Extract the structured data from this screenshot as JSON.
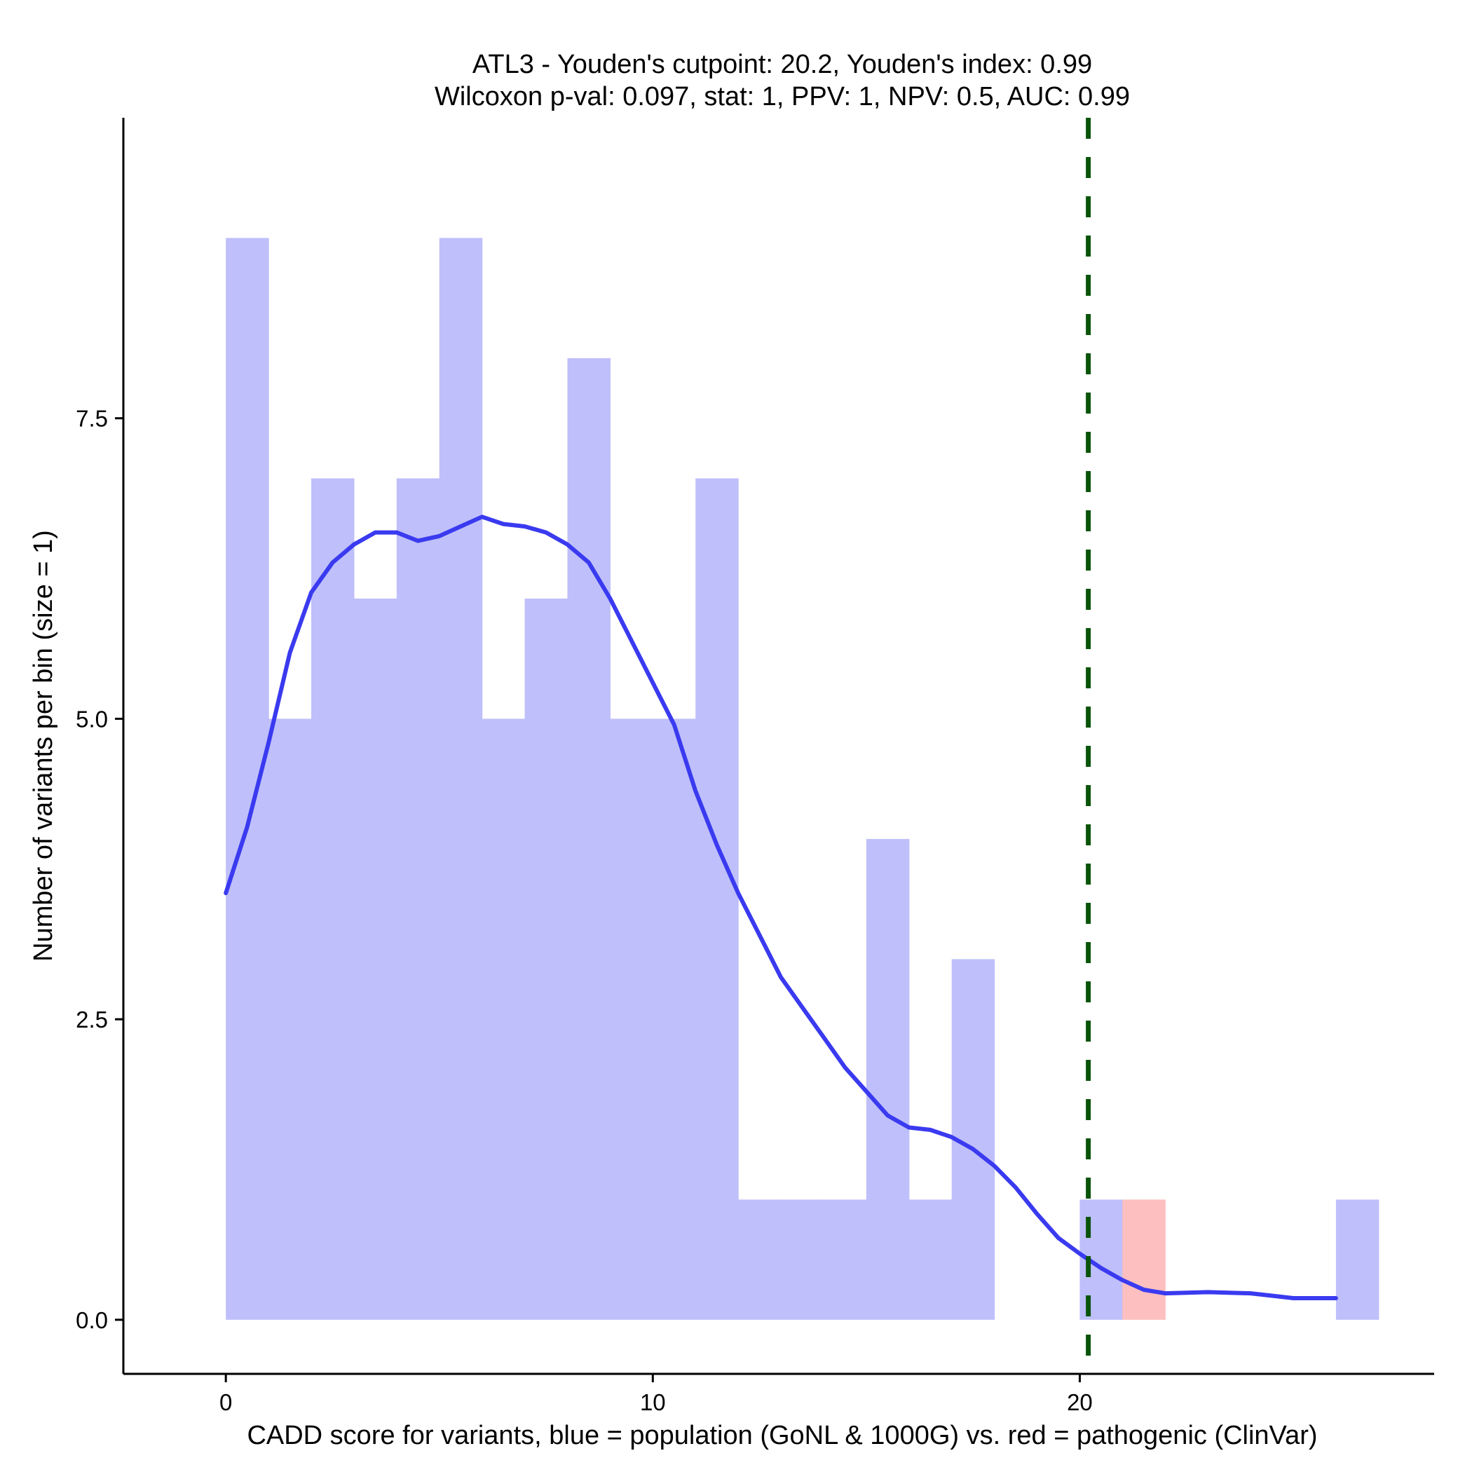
{
  "chart_data": {
    "type": "bar",
    "title": "ATL3 - Youden's cutpoint: 20.2, Youden's index: 0.99",
    "subtitle": "Wilcoxon p-val: 0.097, stat: 1, PPV: 1, NPV: 0.5, AUC: 0.99",
    "xlabel": "CADD score for variants, blue = population (GoNL & 1000G) vs. red = pathogenic (ClinVar)",
    "ylabel": "Number of variants per bin (size = 1)",
    "xlim": [
      -2.4,
      28.3
    ],
    "ylim": [
      -0.45,
      10.0
    ],
    "x_ticks": [
      {
        "value": 0,
        "label": "0"
      },
      {
        "value": 10,
        "label": "10"
      },
      {
        "value": 20,
        "label": "20"
      }
    ],
    "y_ticks": [
      {
        "value": 0,
        "label": "0.0"
      },
      {
        "value": 2.5,
        "label": "2.5"
      },
      {
        "value": 5,
        "label": "5.0"
      },
      {
        "value": 7.5,
        "label": "7.5"
      }
    ],
    "bin_width": 1,
    "series": [
      {
        "color": "#bfbffb",
        "bins": [
          {
            "x": 0,
            "count": 9
          },
          {
            "x": 1,
            "count": 5
          },
          {
            "x": 2,
            "count": 7
          },
          {
            "x": 3,
            "count": 6
          },
          {
            "x": 4,
            "count": 7
          },
          {
            "x": 5,
            "count": 9
          },
          {
            "x": 6,
            "count": 5
          },
          {
            "x": 7,
            "count": 6
          },
          {
            "x": 8,
            "count": 8
          },
          {
            "x": 9,
            "count": 5
          },
          {
            "x": 10,
            "count": 5
          },
          {
            "x": 11,
            "count": 7
          },
          {
            "x": 12,
            "count": 1
          },
          {
            "x": 13,
            "count": 1
          },
          {
            "x": 14,
            "count": 1
          },
          {
            "x": 15,
            "count": 4
          },
          {
            "x": 16,
            "count": 1
          },
          {
            "x": 17,
            "count": 3
          },
          {
            "x": 20,
            "count": 1
          },
          {
            "x": 26,
            "count": 1
          }
        ]
      },
      {
        "color": "#fdbfbf",
        "bins": [
          {
            "x": 21,
            "count": 1
          }
        ]
      }
    ],
    "density_curve": {
      "color": "#3a3af0",
      "points": [
        [
          0.0,
          3.55
        ],
        [
          0.5,
          4.1
        ],
        [
          1.0,
          4.8
        ],
        [
          1.5,
          5.55
        ],
        [
          2.0,
          6.05
        ],
        [
          2.5,
          6.3
        ],
        [
          3.0,
          6.45
        ],
        [
          3.5,
          6.55
        ],
        [
          4.0,
          6.55
        ],
        [
          4.5,
          6.48
        ],
        [
          5.0,
          6.52
        ],
        [
          5.5,
          6.6
        ],
        [
          6.0,
          6.68
        ],
        [
          6.5,
          6.62
        ],
        [
          7.0,
          6.6
        ],
        [
          7.5,
          6.55
        ],
        [
          8.0,
          6.45
        ],
        [
          8.5,
          6.3
        ],
        [
          9.0,
          6.0
        ],
        [
          9.5,
          5.65
        ],
        [
          10.0,
          5.3
        ],
        [
          10.5,
          4.95
        ],
        [
          11.0,
          4.4
        ],
        [
          11.5,
          3.95
        ],
        [
          12.0,
          3.55
        ],
        [
          12.5,
          3.2
        ],
        [
          13.0,
          2.85
        ],
        [
          13.5,
          2.6
        ],
        [
          14.0,
          2.35
        ],
        [
          14.5,
          2.1
        ],
        [
          15.0,
          1.9
        ],
        [
          15.5,
          1.7
        ],
        [
          16.0,
          1.6
        ],
        [
          16.5,
          1.58
        ],
        [
          17.0,
          1.52
        ],
        [
          17.5,
          1.42
        ],
        [
          18.0,
          1.28
        ],
        [
          18.5,
          1.1
        ],
        [
          19.0,
          0.88
        ],
        [
          19.5,
          0.68
        ],
        [
          20.0,
          0.55
        ],
        [
          20.5,
          0.43
        ],
        [
          21.0,
          0.33
        ],
        [
          21.5,
          0.25
        ],
        [
          22.0,
          0.22
        ],
        [
          23.0,
          0.23
        ],
        [
          24.0,
          0.22
        ],
        [
          24.5,
          0.2
        ],
        [
          25.0,
          0.18
        ],
        [
          26.0,
          0.18
        ]
      ]
    },
    "cutpoint": {
      "x": 20.2,
      "color": "#0a540a",
      "style": "dashed"
    },
    "grid": false,
    "legend": "none"
  }
}
